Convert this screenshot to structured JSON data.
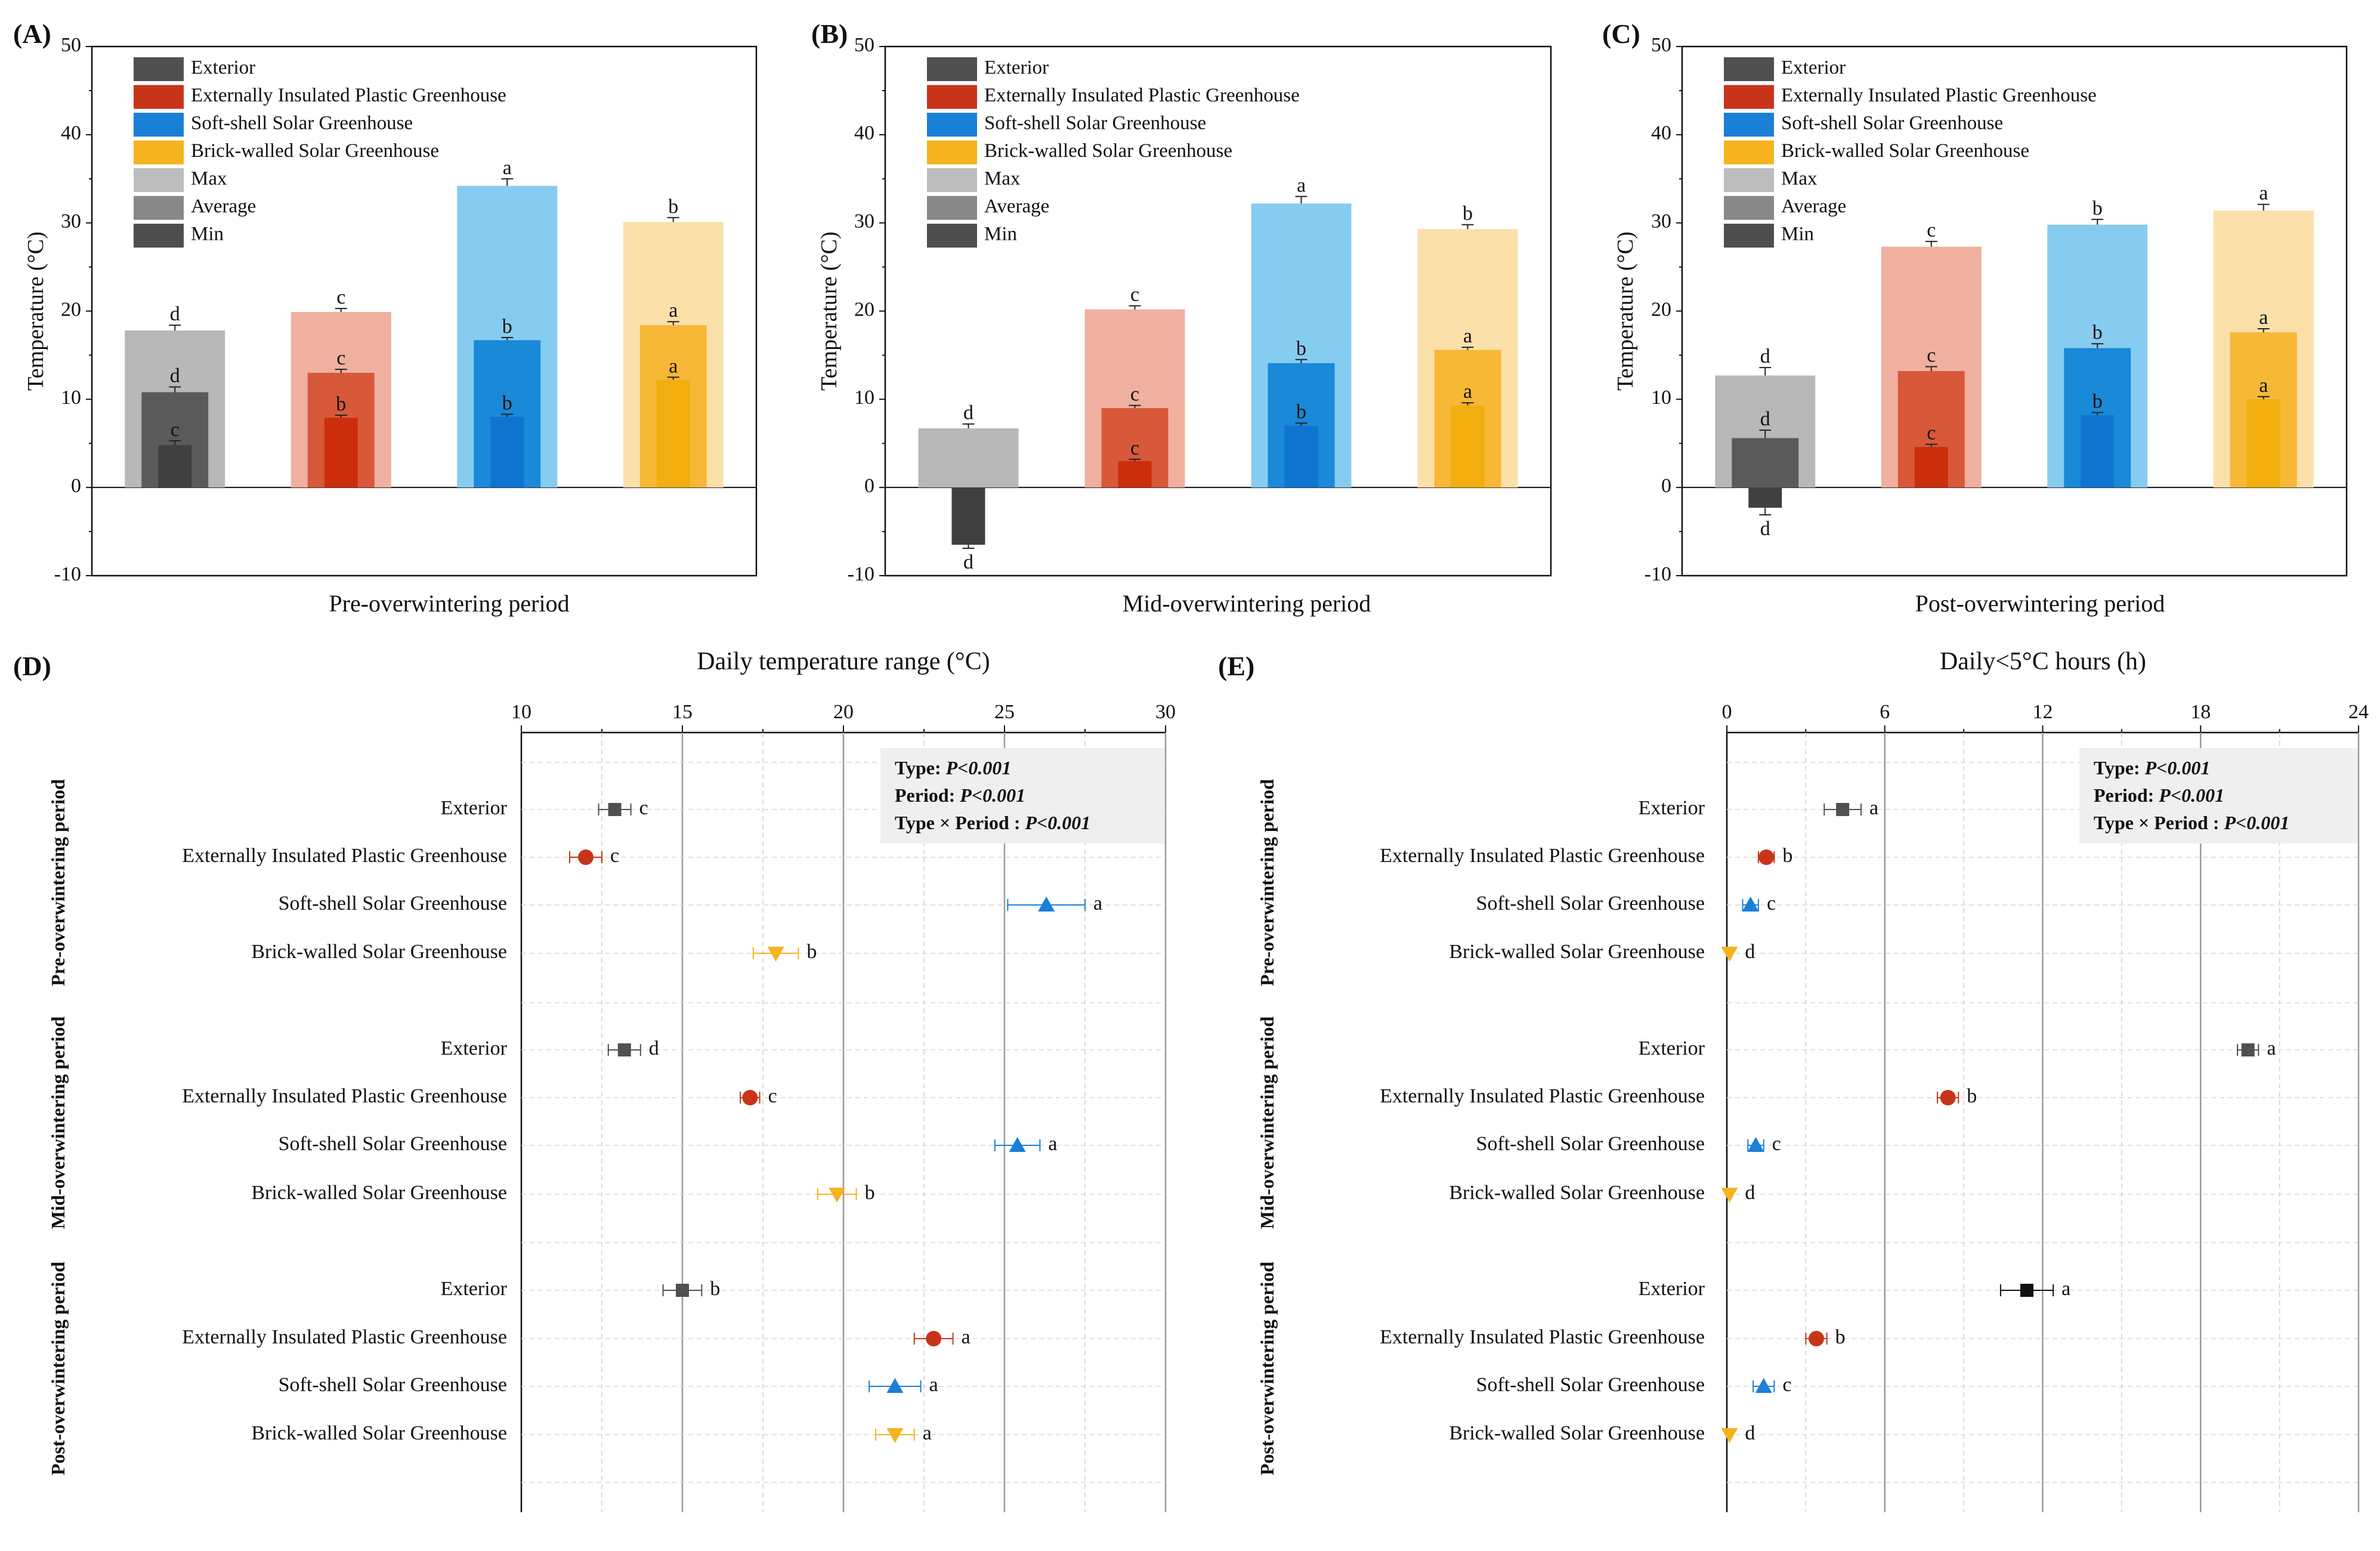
{
  "colors": {
    "exterior": "#505050",
    "plastic": "#c8341a",
    "softshell": "#1a7fd6",
    "brick": "#f5b320",
    "exterior_max": "#b8b8b8",
    "plastic_max": "#efb0a0",
    "softshell_max": "#86ccf0",
    "brick_max": "#fce0aa",
    "exterior_avg": "#5a5a5a",
    "plastic_avg": "#d8583a",
    "softshell_avg": "#1989d8",
    "brick_avg": "#f6b836",
    "exterior_min": "#404040",
    "plastic_min": "#cc2e0c",
    "softshell_min": "#0f74d0",
    "brick_min": "#f2ad0e",
    "legend_max": "#bdbdbd",
    "legend_avg": "#888888",
    "legend_min": "#4e4e4e",
    "exterior_post_E": "#111111"
  },
  "legend": {
    "items": [
      "Exterior",
      "Externally Insulated Plastic Greenhouse",
      "Soft-shell Solar Greenhouse",
      "Brick-walled Solar Greenhouse",
      "Max",
      "Average",
      "Min"
    ]
  },
  "chart_data": [
    {
      "panel": "(A)",
      "type": "bar",
      "xlabel": "Pre-overwintering period",
      "ylabel": "Temperature (°C)",
      "ylim": [
        -10,
        50
      ],
      "yticks": [
        "-10",
        "0",
        "10",
        "20",
        "30",
        "40",
        "50"
      ],
      "series": [
        {
          "name": "Exterior",
          "max": 17.8,
          "max_err": 0.6,
          "max_label": "d",
          "avg": 10.8,
          "avg_err": 0.6,
          "avg_label": "d",
          "min": 4.8,
          "min_err": 0.5,
          "min_label": "c"
        },
        {
          "name": "Externally Insulated Plastic Greenhouse",
          "max": 19.9,
          "max_err": 0.4,
          "max_label": "c",
          "avg": 13.0,
          "avg_err": 0.4,
          "avg_label": "c",
          "min": 7.9,
          "min_err": 0.3,
          "min_label": "b"
        },
        {
          "name": "Soft-shell Solar Greenhouse",
          "max": 34.2,
          "max_err": 0.8,
          "max_label": "a",
          "avg": 16.7,
          "avg_err": 0.3,
          "avg_label": "b",
          "min": 8.0,
          "min_err": 0.3,
          "min_label": "b"
        },
        {
          "name": "Brick-walled Solar Greenhouse",
          "max": 30.1,
          "max_err": 0.5,
          "max_label": "b",
          "avg": 18.4,
          "avg_err": 0.4,
          "avg_label": "a",
          "min": 12.2,
          "min_err": 0.3,
          "min_label": "a"
        }
      ]
    },
    {
      "panel": "(B)",
      "type": "bar",
      "xlabel": "Mid-overwintering period",
      "ylabel": "Temperature (°C)",
      "ylim": [
        -10,
        50
      ],
      "yticks": [
        "-10",
        "0",
        "10",
        "20",
        "30",
        "40",
        "50"
      ],
      "series": [
        {
          "name": "Exterior",
          "max": 6.7,
          "max_err": 0.5,
          "max_label": "d",
          "avg": 0.0,
          "avg_err": 0.0,
          "avg_label": "",
          "min": -6.5,
          "min_err": 0.4,
          "min_label": "d"
        },
        {
          "name": "Externally Insulated Plastic Greenhouse",
          "max": 20.2,
          "max_err": 0.4,
          "max_label": "c",
          "avg": 9.0,
          "avg_err": 0.3,
          "avg_label": "c",
          "min": 3.0,
          "min_err": 0.2,
          "min_label": "c"
        },
        {
          "name": "Soft-shell Solar Greenhouse",
          "max": 32.2,
          "max_err": 0.8,
          "max_label": "a",
          "avg": 14.1,
          "avg_err": 0.4,
          "avg_label": "b",
          "min": 7.0,
          "min_err": 0.3,
          "min_label": "b"
        },
        {
          "name": "Brick-walled Solar Greenhouse",
          "max": 29.3,
          "max_err": 0.5,
          "max_label": "b",
          "avg": 15.6,
          "avg_err": 0.3,
          "avg_label": "a",
          "min": 9.3,
          "min_err": 0.3,
          "min_label": "a"
        }
      ]
    },
    {
      "panel": "(C)",
      "type": "bar",
      "xlabel": "Post-overwintering period",
      "ylabel": "Temperature (°C)",
      "ylim": [
        -10,
        50
      ],
      "yticks": [
        "-10",
        "0",
        "10",
        "20",
        "30",
        "40",
        "50"
      ],
      "series": [
        {
          "name": "Exterior",
          "max": 12.7,
          "max_err": 0.9,
          "max_label": "d",
          "avg": 5.6,
          "avg_err": 0.9,
          "avg_label": "d",
          "min": -2.3,
          "min_err": 0.8,
          "min_label": "d"
        },
        {
          "name": "Externally Insulated Plastic Greenhouse",
          "max": 27.3,
          "max_err": 0.6,
          "max_label": "c",
          "avg": 13.2,
          "avg_err": 0.5,
          "avg_label": "c",
          "min": 4.6,
          "min_err": 0.3,
          "min_label": "c"
        },
        {
          "name": "Soft-shell Solar Greenhouse",
          "max": 29.8,
          "max_err": 0.6,
          "max_label": "b",
          "avg": 15.8,
          "avg_err": 0.5,
          "avg_label": "b",
          "min": 8.2,
          "min_err": 0.3,
          "min_label": "b"
        },
        {
          "name": "Brick-walled Solar Greenhouse",
          "max": 31.4,
          "max_err": 0.7,
          "max_label": "a",
          "avg": 17.6,
          "avg_err": 0.4,
          "avg_label": "a",
          "min": 10.0,
          "min_err": 0.3,
          "min_label": "a"
        }
      ]
    },
    {
      "panel": "(D)",
      "type": "scatter",
      "title": "Daily temperature range (°C)",
      "xlim": [
        10,
        30
      ],
      "xticks": [
        "10",
        "15",
        "20",
        "25",
        "30"
      ],
      "stats": [
        {
          "label": "Type: ",
          "value": "P<0.001"
        },
        {
          "label": "Period: ",
          "value": "P<0.001"
        },
        {
          "label": "Type × Period : ",
          "value": "P<0.001"
        }
      ],
      "groups": [
        {
          "period": "Pre-overwintering period",
          "points": [
            {
              "category": "Exterior",
              "mean": 12.9,
              "err": 0.5,
              "letter": "c",
              "marker": "square"
            },
            {
              "category": "Externally Insulated Plastic Greenhouse",
              "mean": 12.0,
              "err": 0.5,
              "letter": "c",
              "marker": "circle"
            },
            {
              "category": "Soft-shell Solar Greenhouse",
              "mean": 26.3,
              "err": 1.2,
              "letter": "a",
              "marker": "triangle-up"
            },
            {
              "category": "Brick-walled Solar Greenhouse",
              "mean": 17.9,
              "err": 0.7,
              "letter": "b",
              "marker": "triangle-down"
            }
          ]
        },
        {
          "period": "Mid-overwintering period",
          "points": [
            {
              "category": "Exterior",
              "mean": 13.2,
              "err": 0.5,
              "letter": "d",
              "marker": "square"
            },
            {
              "category": "Externally Insulated Plastic Greenhouse",
              "mean": 17.1,
              "err": 0.3,
              "letter": "c",
              "marker": "circle"
            },
            {
              "category": "Soft-shell Solar Greenhouse",
              "mean": 25.4,
              "err": 0.7,
              "letter": "a",
              "marker": "triangle-up"
            },
            {
              "category": "Brick-walled Solar Greenhouse",
              "mean": 19.8,
              "err": 0.6,
              "letter": "b",
              "marker": "triangle-down"
            }
          ]
        },
        {
          "period": "Post-overwintering period",
          "points": [
            {
              "category": "Exterior",
              "mean": 15.0,
              "err": 0.6,
              "letter": "b",
              "marker": "square"
            },
            {
              "category": "Externally Insulated Plastic Greenhouse",
              "mean": 22.8,
              "err": 0.6,
              "letter": "a",
              "marker": "circle"
            },
            {
              "category": "Soft-shell Solar Greenhouse",
              "mean": 21.6,
              "err": 0.8,
              "letter": "a",
              "marker": "triangle-up"
            },
            {
              "category": "Brick-walled Solar Greenhouse",
              "mean": 21.6,
              "err": 0.6,
              "letter": "a",
              "marker": "triangle-down"
            }
          ]
        }
      ]
    },
    {
      "panel": "(E)",
      "type": "scatter",
      "title": "Daily<5°C hours (h)",
      "xlim": [
        0,
        24
      ],
      "xticks": [
        "0",
        "6",
        "12",
        "18",
        "24"
      ],
      "stats": [
        {
          "label": "Type: ",
          "value": "P<0.001"
        },
        {
          "label": "Period: ",
          "value": "P<0.001"
        },
        {
          "label": "Type × Period : ",
          "value": "P<0.001"
        }
      ],
      "groups": [
        {
          "period": "Pre-overwintering period",
          "points": [
            {
              "category": "Exterior",
              "mean": 4.4,
              "err": 0.7,
              "letter": "a",
              "marker": "square"
            },
            {
              "category": "Externally Insulated Plastic Greenhouse",
              "mean": 1.5,
              "err": 0.3,
              "letter": "b",
              "marker": "circle"
            },
            {
              "category": "Soft-shell Solar Greenhouse",
              "mean": 0.9,
              "err": 0.3,
              "letter": "c",
              "marker": "triangle-up"
            },
            {
              "category": "Brick-walled Solar Greenhouse",
              "mean": 0.1,
              "err": 0.0,
              "letter": "d",
              "marker": "triangle-down"
            }
          ]
        },
        {
          "period": "Mid-overwintering period",
          "points": [
            {
              "category": "Exterior",
              "mean": 19.8,
              "err": 0.4,
              "letter": "a",
              "marker": "square"
            },
            {
              "category": "Externally Insulated Plastic Greenhouse",
              "mean": 8.4,
              "err": 0.4,
              "letter": "b",
              "marker": "circle"
            },
            {
              "category": "Soft-shell Solar Greenhouse",
              "mean": 1.1,
              "err": 0.3,
              "letter": "c",
              "marker": "triangle-up"
            },
            {
              "category": "Brick-walled Solar Greenhouse",
              "mean": 0.1,
              "err": 0.0,
              "letter": "d",
              "marker": "triangle-down"
            }
          ]
        },
        {
          "period": "Post-overwintering period",
          "points": [
            {
              "category": "Exterior",
              "mean": 11.4,
              "err": 1.0,
              "letter": "a",
              "marker": "square"
            },
            {
              "category": "Externally Insulated Plastic Greenhouse",
              "mean": 3.4,
              "err": 0.4,
              "letter": "b",
              "marker": "circle"
            },
            {
              "category": "Soft-shell Solar Greenhouse",
              "mean": 1.4,
              "err": 0.4,
              "letter": "c",
              "marker": "triangle-up"
            },
            {
              "category": "Brick-walled Solar Greenhouse",
              "mean": 0.1,
              "err": 0.0,
              "letter": "d",
              "marker": "triangle-down"
            }
          ]
        }
      ]
    }
  ]
}
